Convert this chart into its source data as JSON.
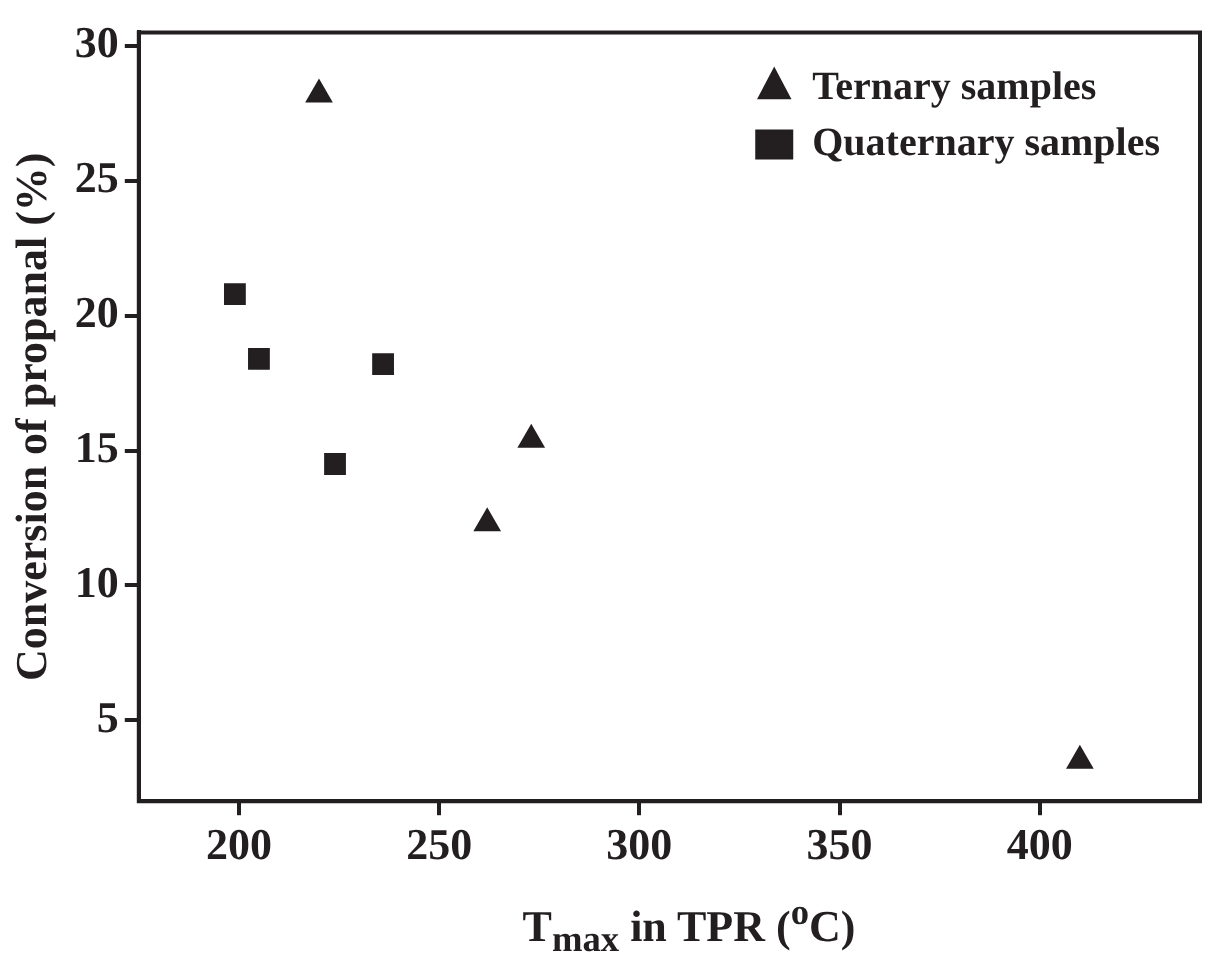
{
  "chart_data": {
    "type": "scatter",
    "xlabel": "T$_{max}$ in TPR ($^{o}$C)",
    "ylabel": "Conversion of propanal (%)",
    "xlim": [
      175,
      440
    ],
    "xticks": [
      200,
      250,
      300,
      350,
      400
    ],
    "ylim": [
      2,
      30.5
    ],
    "yticks": [
      5,
      10,
      15,
      20,
      25,
      30
    ],
    "grid": false,
    "legend": "top right",
    "series": [
      {
        "name": "Ternary samples",
        "color": "#231f20",
        "marker": "triangle",
        "x": [
          220,
          262,
          273,
          410
        ],
        "values": [
          28.2,
          12.3,
          15.4,
          3.5
        ]
      },
      {
        "name": "Quaternary samples",
        "color": "#231f20",
        "marker": "square",
        "x": [
          199,
          205,
          224,
          236
        ],
        "values": [
          20.8,
          18.4,
          14.5,
          18.2
        ]
      }
    ]
  }
}
